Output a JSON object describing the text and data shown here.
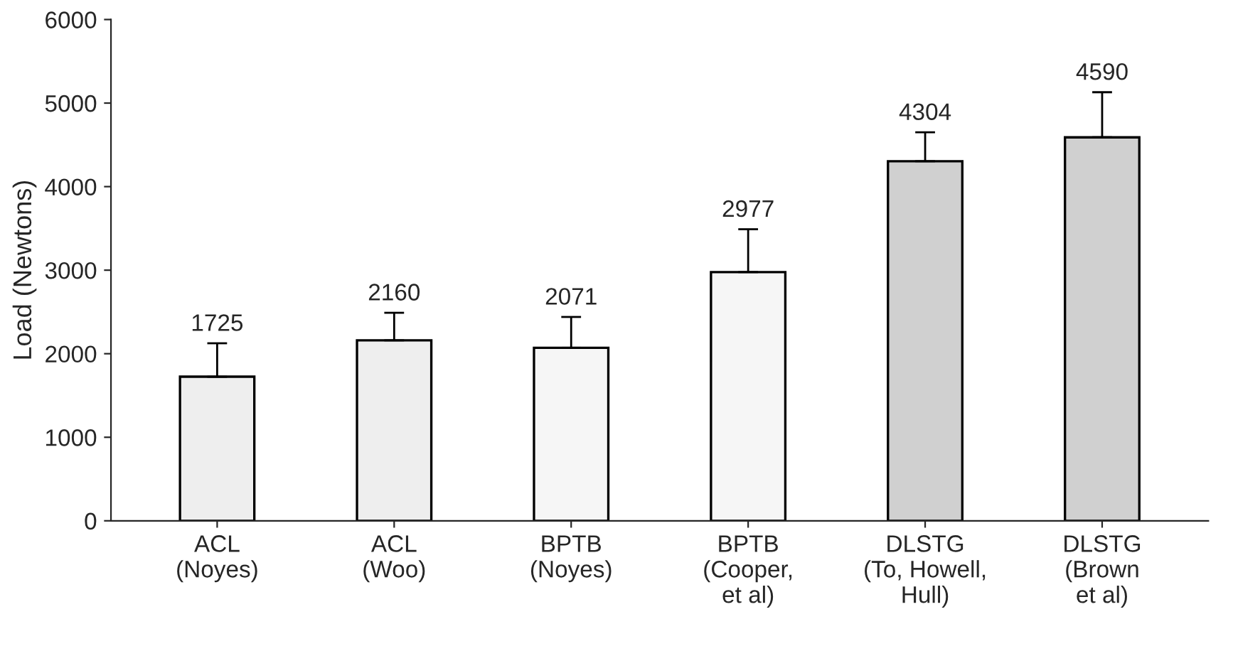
{
  "chart_data": {
    "type": "bar",
    "ylabel": "Load (Newtons)",
    "categories": [
      "ACL\n(Noyes)",
      "ACL\n(Woo)",
      "BPTB\n(Noyes)",
      "BPTB\n(Cooper,\net al)",
      "DLSTG\n(To, Howell,\nHull)",
      "DLSTG\n(Brown\net al)"
    ],
    "values": [
      1725,
      2160,
      2071,
      2977,
      4304,
      4590
    ],
    "errors": [
      [
        1725,
        2125
      ],
      [
        2160,
        2490
      ],
      [
        2071,
        2440
      ],
      [
        2977,
        3490
      ],
      [
        4304,
        4650
      ],
      [
        4590,
        5130
      ]
    ],
    "colors": [
      "#eeeeee",
      "#eeeeee",
      "#f6f6f6",
      "#f6f6f6",
      "#d0d0d0",
      "#d0d0d0"
    ],
    "data_labels": true,
    "ylim": [
      0,
      6000
    ],
    "yticks": [
      0,
      1000,
      2000,
      3000,
      4000,
      5000,
      6000
    ],
    "grid": false
  }
}
